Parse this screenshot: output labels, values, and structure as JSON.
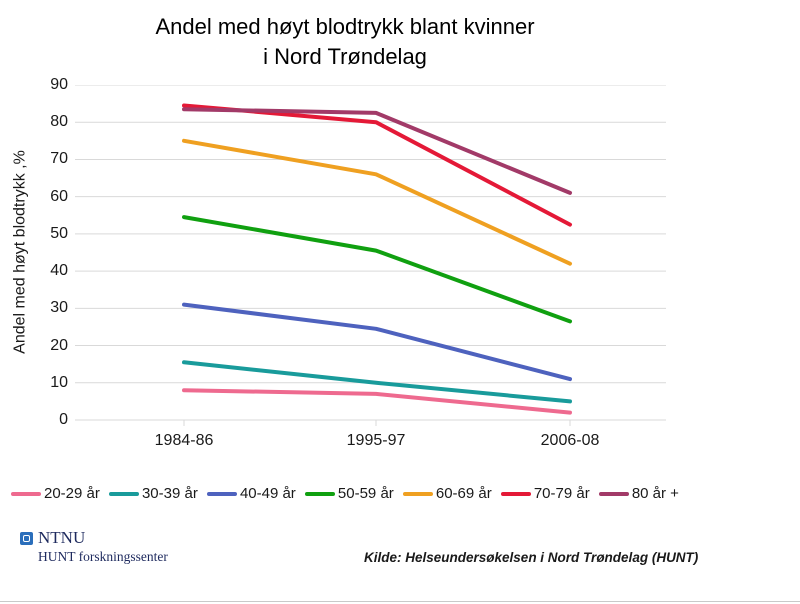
{
  "chart_data": {
    "type": "line",
    "title": "Andel med høyt blodtrykk blant kvinner i Nord Trøndelag",
    "title_lines": [
      "Andel med høyt blodtrykk blant kvinner",
      "i Nord Trøndelag"
    ],
    "xlabel": "",
    "ylabel": "Andel med høyt blodtrykk ,%",
    "categories": [
      "1984-86",
      "1995-97",
      "2006-08"
    ],
    "series": [
      {
        "name": "20-29 år",
        "color": "#EE6A8F",
        "values": [
          8,
          7,
          2
        ]
      },
      {
        "name": "30-39 år",
        "color": "#199B9B",
        "values": [
          15.5,
          10,
          5
        ]
      },
      {
        "name": "40-49 år",
        "color": "#4E62BE",
        "values": [
          31,
          24.5,
          11
        ]
      },
      {
        "name": "50-59 år",
        "color": "#10A010",
        "values": [
          54.5,
          45.5,
          26.5
        ]
      },
      {
        "name": "60-69 år",
        "color": "#EFA021",
        "values": [
          75,
          66,
          42
        ]
      },
      {
        "name": "70-79 år",
        "color": "#E41937",
        "values": [
          84.5,
          80,
          52.5
        ]
      },
      {
        "name": "80 år +",
        "color": "#A23A68",
        "values": [
          83.5,
          82.5,
          61
        ]
      }
    ],
    "ylim": [
      0,
      90
    ],
    "yticks": [
      0,
      10,
      20,
      30,
      40,
      50,
      60,
      70,
      80,
      90
    ],
    "grid": "horizontal",
    "gridline_color": "#D9D9D9",
    "legend_position": "bottom"
  },
  "footer": {
    "logo_text": "NTNU",
    "logo_subtext": "HUNT forskningssenter",
    "source": "Kilde: Helseundersøkelsen i Nord Trøndelag (HUNT)"
  }
}
